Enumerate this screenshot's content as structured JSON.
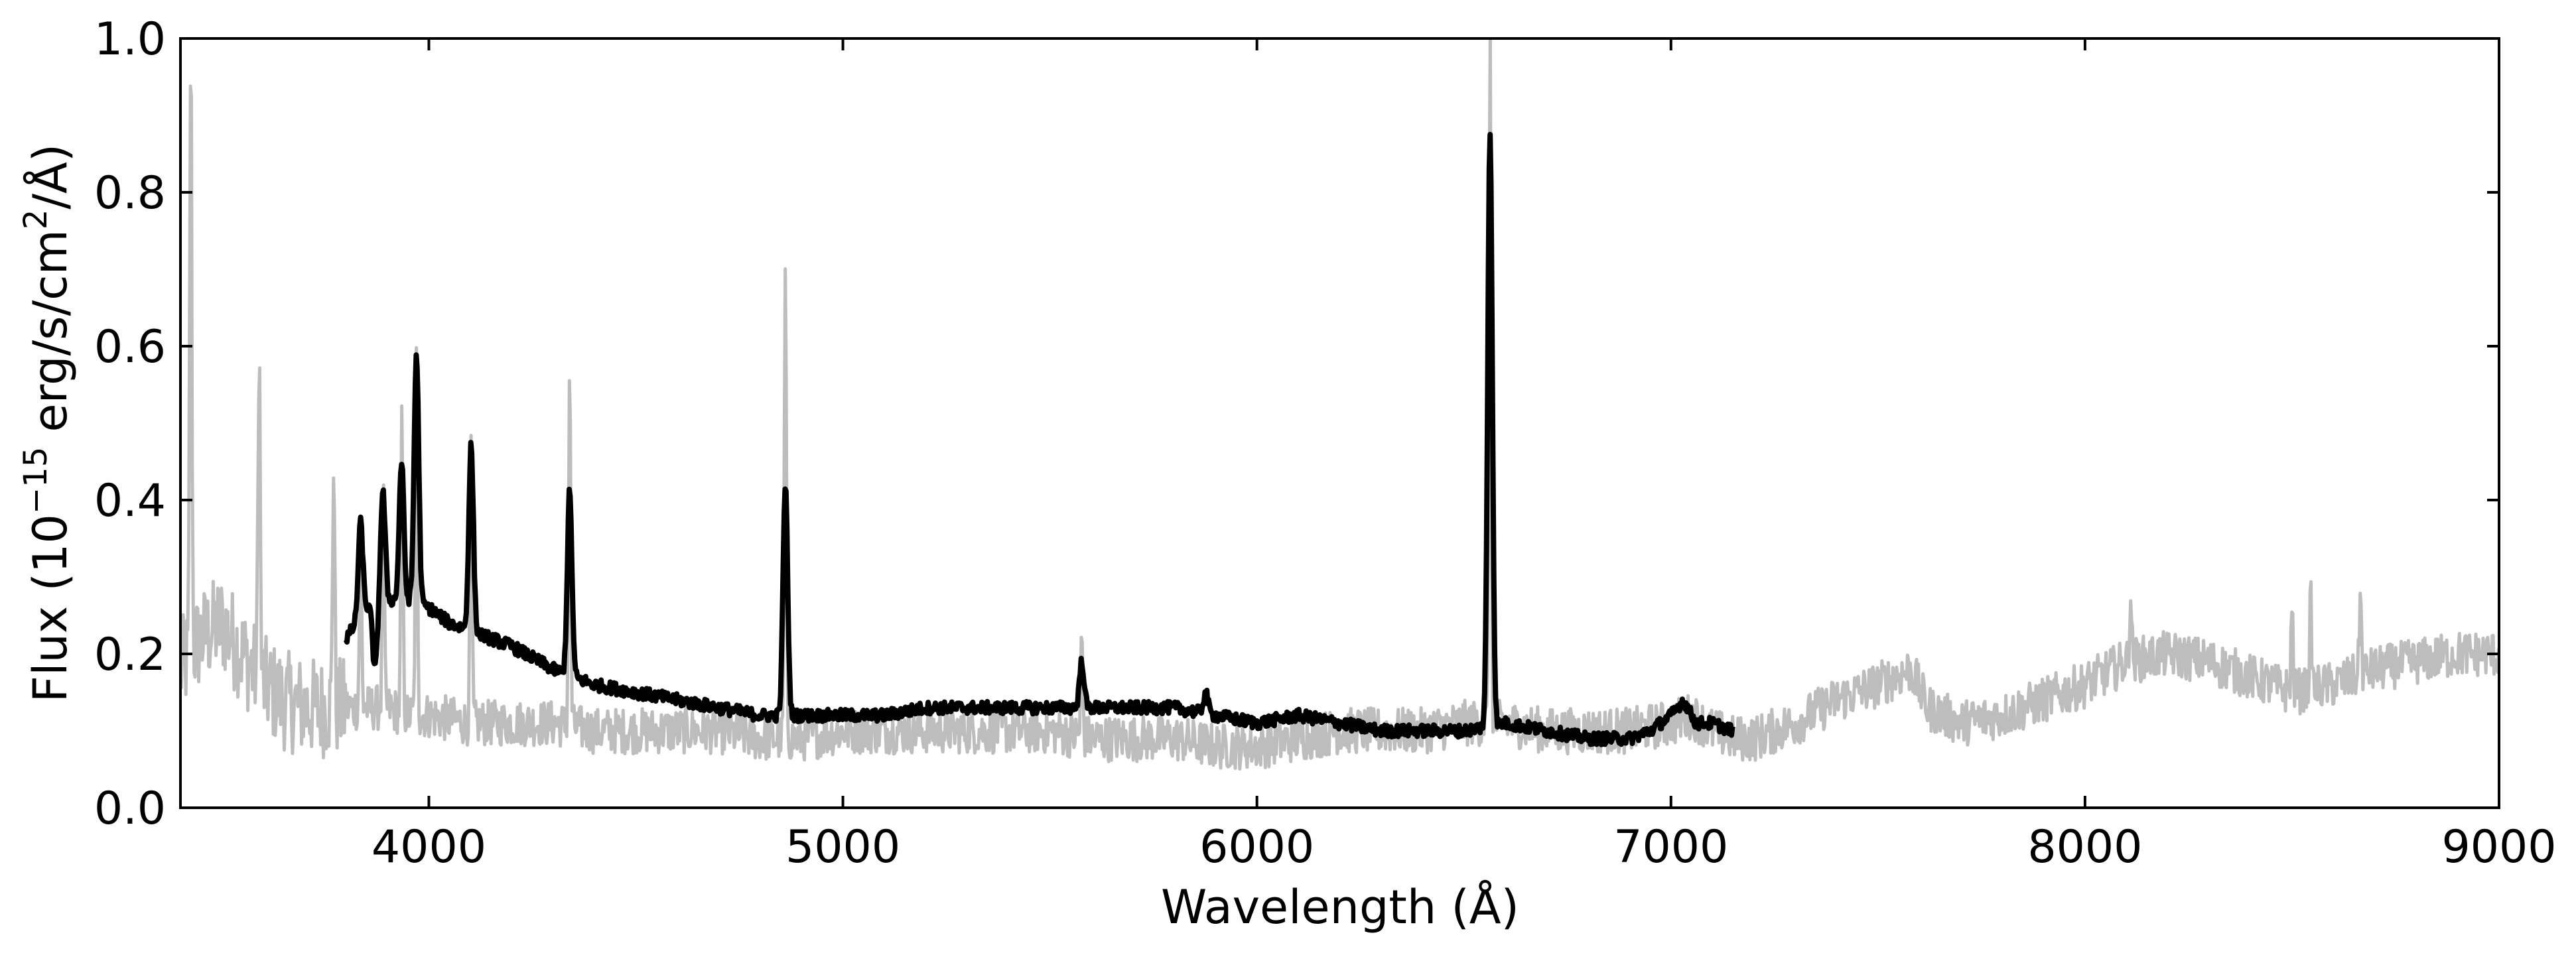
{
  "chart_data": {
    "type": "line",
    "title": "",
    "xlabel": "Wavelength (Å)",
    "ylabel": {
      "prefix": "Flux (10",
      "exp1": "−15",
      "middle": " erg/s/cm",
      "exp2": "2",
      "suffix": "/Å)"
    },
    "xlim": [
      3400,
      9000
    ],
    "ylim": [
      0.0,
      1.0
    ],
    "xticks": [
      4000,
      5000,
      6000,
      7000,
      8000,
      9000
    ],
    "xtick_labels": [
      "4000",
      "5000",
      "6000",
      "7000",
      "8000",
      "9000"
    ],
    "yticks": [
      0.0,
      0.2,
      0.4,
      0.6,
      0.8,
      1.0
    ],
    "ytick_labels": [
      "0.0",
      "0.2",
      "0.4",
      "0.6",
      "0.8",
      "1.0"
    ],
    "grid": false,
    "legend": "none",
    "series": [
      {
        "color": "#bdbdbd",
        "noise": 0.03,
        "x": [
          3400,
          3450,
          3500,
          3550,
          3600,
          3650,
          3700,
          3750,
          3800,
          3850,
          3900,
          3950,
          4000,
          4100,
          4200,
          4300,
          4400,
          4500,
          4600,
          4700,
          4800,
          4900,
          5000,
          5100,
          5200,
          5300,
          5400,
          5500,
          5600,
          5700,
          5800,
          5900,
          6000,
          6100,
          6200,
          6300,
          6400,
          6500,
          6600,
          6700,
          6800,
          6900,
          7000,
          7050,
          7100,
          7150,
          7200,
          7300,
          7400,
          7500,
          7580,
          7620,
          7700,
          7800,
          7900,
          8000,
          8100,
          8200,
          8300,
          8400,
          8450,
          8500,
          8600,
          8700,
          8800,
          8900,
          9000
        ],
        "y": [
          0.18,
          0.22,
          0.24,
          0.2,
          0.16,
          0.14,
          0.13,
          0.13,
          0.13,
          0.13,
          0.13,
          0.12,
          0.12,
          0.11,
          0.11,
          0.11,
          0.1,
          0.1,
          0.1,
          0.1,
          0.09,
          0.09,
          0.1,
          0.1,
          0.1,
          0.1,
          0.1,
          0.1,
          0.09,
          0.09,
          0.09,
          0.08,
          0.08,
          0.09,
          0.1,
          0.1,
          0.1,
          0.11,
          0.11,
          0.1,
          0.1,
          0.1,
          0.11,
          0.12,
          0.1,
          0.09,
          0.09,
          0.11,
          0.14,
          0.16,
          0.18,
          0.13,
          0.11,
          0.12,
          0.14,
          0.16,
          0.19,
          0.2,
          0.19,
          0.17,
          0.16,
          0.15,
          0.16,
          0.18,
          0.19,
          0.2,
          0.2
        ],
        "lines": [
          {
            "x": 3425,
            "y": 1.0
          },
          {
            "x": 3590,
            "y": 0.62
          },
          {
            "x": 3770,
            "y": 0.47
          },
          {
            "x": 3835,
            "y": 0.36
          },
          {
            "x": 3890,
            "y": 0.4
          },
          {
            "x": 3935,
            "y": 0.5
          },
          {
            "x": 3970,
            "y": 0.58
          },
          {
            "x": 4102,
            "y": 0.48
          },
          {
            "x": 4340,
            "y": 0.57
          },
          {
            "x": 4861,
            "y": 0.7
          },
          {
            "x": 5577,
            "y": 0.22
          },
          {
            "x": 6563,
            "y": 1.0
          },
          {
            "x": 8110,
            "y": 0.28
          },
          {
            "x": 8500,
            "y": 0.26
          },
          {
            "x": 8545,
            "y": 0.27
          },
          {
            "x": 8665,
            "y": 0.28
          }
        ]
      },
      {
        "color": "#000000",
        "noise": 0.008,
        "x": [
          3800,
          3850,
          3900,
          3950,
          4000,
          4050,
          4100,
          4150,
          4200,
          4300,
          4400,
          4500,
          4600,
          4700,
          4800,
          4900,
          5000,
          5100,
          5200,
          5300,
          5400,
          5500,
          5600,
          5700,
          5800,
          5900,
          6000,
          6100,
          6200,
          6300,
          6400,
          6500,
          6600,
          6700,
          6800,
          6900,
          6950,
          7000,
          7030,
          7060,
          7100,
          7150
        ],
        "y": [
          0.22,
          0.26,
          0.27,
          0.27,
          0.26,
          0.24,
          0.23,
          0.22,
          0.21,
          0.18,
          0.16,
          0.15,
          0.14,
          0.13,
          0.12,
          0.12,
          0.12,
          0.12,
          0.13,
          0.13,
          0.13,
          0.13,
          0.13,
          0.13,
          0.13,
          0.12,
          0.11,
          0.12,
          0.11,
          0.1,
          0.1,
          0.1,
          0.11,
          0.1,
          0.09,
          0.09,
          0.1,
          0.12,
          0.14,
          0.11,
          0.11,
          0.1
        ],
        "lines": [
          {
            "x": 3835,
            "y": 0.37
          },
          {
            "x": 3870,
            "y": 0.18
          },
          {
            "x": 3889,
            "y": 0.41
          },
          {
            "x": 3934,
            "y": 0.45
          },
          {
            "x": 3970,
            "y": 0.59
          },
          {
            "x": 4102,
            "y": 0.47
          },
          {
            "x": 4340,
            "y": 0.41
          },
          {
            "x": 4861,
            "y": 0.42
          },
          {
            "x": 5577,
            "y": 0.19
          },
          {
            "x": 5876,
            "y": 0.15
          },
          {
            "x": 6563,
            "y": 0.88
          }
        ]
      }
    ]
  }
}
